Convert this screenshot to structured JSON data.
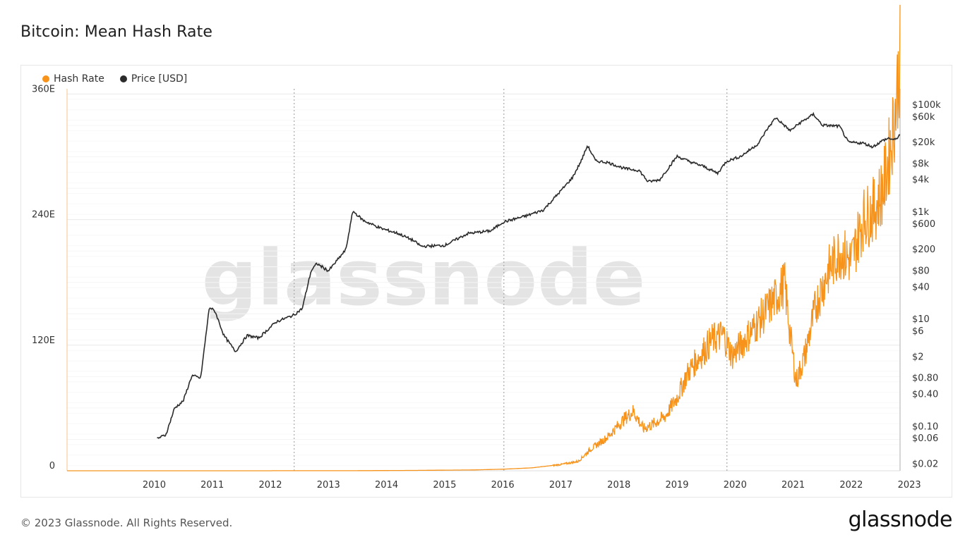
{
  "title": "Bitcoin: Mean Hash Rate",
  "footer": {
    "copyright": "© 2023 Glassnode. All Rights Reserved.",
    "logo": "glassnode"
  },
  "watermark": "glassnode",
  "colors": {
    "hash_rate": "#f7931a",
    "price": "#2b2b2b",
    "grid": "#efefef",
    "watermark": "#e4e4e4"
  },
  "chart_data": {
    "type": "line",
    "legend": {
      "placement": "top-left",
      "entries": [
        "Hash Rate",
        "Price [USD]"
      ]
    },
    "grid": true,
    "x_axis": {
      "range": [
        2009.0,
        2023.34
      ],
      "ticks": [
        "2010",
        "2011",
        "2012",
        "2013",
        "2014",
        "2015",
        "2016",
        "2017",
        "2018",
        "2019",
        "2020",
        "2021",
        "2022",
        "2023"
      ],
      "halving_markers": [
        2012.91,
        2016.52,
        2020.36
      ]
    },
    "y_left": {
      "label": "",
      "unit": "E",
      "range": [
        0,
        365
      ],
      "tick_values": [
        0,
        120,
        240,
        360
      ],
      "tick_labels": [
        "0",
        "120E",
        "240E",
        "360E"
      ]
    },
    "y_right": {
      "label": "",
      "scale": "log",
      "range": [
        0.015,
        200000
      ],
      "tick_values": [
        100000,
        60000,
        20000,
        8000,
        4000,
        1000,
        600,
        200,
        80,
        40,
        10,
        6,
        2,
        0.8,
        0.4,
        0.1,
        0.06,
        0.02
      ],
      "tick_labels": [
        "$100k",
        "$60k",
        "$20k",
        "$8k",
        "$4k",
        "$1k",
        "$600",
        "$200",
        "$80",
        "$40",
        "$10",
        "$6",
        "$2",
        "$0.80",
        "$0.40",
        "$0.10",
        "$0.06",
        "$0.02"
      ]
    },
    "series": [
      {
        "name": "Hash Rate",
        "axis": "left",
        "unit": "EH/s",
        "points": [
          [
            2009.0,
            0
          ],
          [
            2012.0,
            0.01
          ],
          [
            2014.0,
            0.1
          ],
          [
            2015.0,
            0.35
          ],
          [
            2016.0,
            0.8
          ],
          [
            2016.5,
            1.5
          ],
          [
            2017.0,
            2.8
          ],
          [
            2017.5,
            6
          ],
          [
            2017.8,
            9
          ],
          [
            2018.0,
            20
          ],
          [
            2018.3,
            32
          ],
          [
            2018.6,
            50
          ],
          [
            2018.75,
            57
          ],
          [
            2018.92,
            40
          ],
          [
            2019.1,
            45
          ],
          [
            2019.3,
            52
          ],
          [
            2019.5,
            70
          ],
          [
            2019.7,
            95
          ],
          [
            2019.9,
            110
          ],
          [
            2020.1,
            125
          ],
          [
            2020.3,
            130
          ],
          [
            2020.45,
            110
          ],
          [
            2020.6,
            120
          ],
          [
            2020.8,
            135
          ],
          [
            2021.0,
            150
          ],
          [
            2021.2,
            165
          ],
          [
            2021.35,
            180
          ],
          [
            2021.45,
            130
          ],
          [
            2021.55,
            85
          ],
          [
            2021.7,
            110
          ],
          [
            2021.9,
            160
          ],
          [
            2022.1,
            190
          ],
          [
            2022.3,
            210
          ],
          [
            2022.5,
            200
          ],
          [
            2022.7,
            240
          ],
          [
            2022.9,
            250
          ],
          [
            2023.05,
            270
          ],
          [
            2023.15,
            300
          ],
          [
            2023.25,
            340
          ],
          [
            2023.34,
            395
          ]
        ]
      },
      {
        "name": "Price [USD]",
        "axis": "right",
        "unit": "USD",
        "points": [
          [
            2010.55,
            0.06
          ],
          [
            2010.7,
            0.07
          ],
          [
            2010.85,
            0.22
          ],
          [
            2011.0,
            0.3
          ],
          [
            2011.15,
            0.9
          ],
          [
            2011.3,
            0.8
          ],
          [
            2011.45,
            17
          ],
          [
            2011.55,
            14
          ],
          [
            2011.7,
            5
          ],
          [
            2011.9,
            2.5
          ],
          [
            2012.1,
            5
          ],
          [
            2012.3,
            4.5
          ],
          [
            2012.6,
            9
          ],
          [
            2012.9,
            12
          ],
          [
            2013.05,
            16
          ],
          [
            2013.2,
            80
          ],
          [
            2013.3,
            110
          ],
          [
            2013.5,
            80
          ],
          [
            2013.8,
            200
          ],
          [
            2013.92,
            1050
          ],
          [
            2014.1,
            700
          ],
          [
            2014.4,
            500
          ],
          [
            2014.7,
            400
          ],
          [
            2014.95,
            300
          ],
          [
            2015.1,
            230
          ],
          [
            2015.5,
            240
          ],
          [
            2015.9,
            400
          ],
          [
            2016.3,
            450
          ],
          [
            2016.5,
            650
          ],
          [
            2016.9,
            850
          ],
          [
            2017.2,
            1100
          ],
          [
            2017.5,
            2500
          ],
          [
            2017.7,
            4400
          ],
          [
            2017.85,
            9000
          ],
          [
            2017.96,
            17500
          ],
          [
            2018.1,
            9000
          ],
          [
            2018.3,
            8500
          ],
          [
            2018.6,
            6500
          ],
          [
            2018.85,
            6000
          ],
          [
            2019.0,
            3700
          ],
          [
            2019.2,
            4000
          ],
          [
            2019.5,
            11000
          ],
          [
            2019.75,
            8500
          ],
          [
            2019.95,
            7200
          ],
          [
            2020.2,
            5300
          ],
          [
            2020.35,
            8900
          ],
          [
            2020.6,
            11000
          ],
          [
            2020.9,
            19000
          ],
          [
            2021.05,
            35000
          ],
          [
            2021.2,
            58000
          ],
          [
            2021.45,
            33000
          ],
          [
            2021.6,
            45000
          ],
          [
            2021.85,
            67000
          ],
          [
            2022.0,
            42000
          ],
          [
            2022.3,
            40000
          ],
          [
            2022.45,
            20000
          ],
          [
            2022.7,
            19500
          ],
          [
            2022.87,
            16500
          ],
          [
            2023.05,
            22000
          ],
          [
            2023.15,
            24000
          ],
          [
            2023.25,
            22000
          ],
          [
            2023.34,
            28000
          ]
        ]
      }
    ]
  }
}
